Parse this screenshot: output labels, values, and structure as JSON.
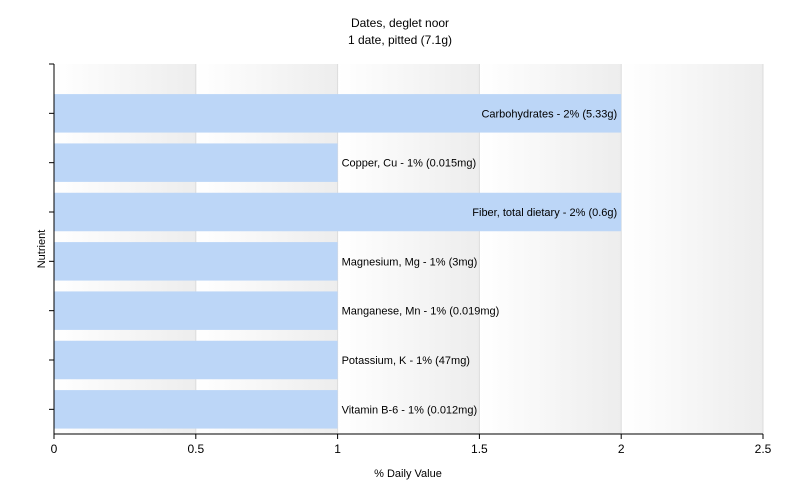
{
  "chart_data": {
    "type": "bar",
    "orientation": "horizontal",
    "title": "Dates, deglet noor",
    "subtitle": "1 date, pitted (7.1g)",
    "xlabel": "% Daily Value",
    "ylabel": "Nutrient",
    "xlim": [
      0,
      2.5
    ],
    "xticks": [
      "0",
      "0.5",
      "1",
      "1.5",
      "2",
      "2.5"
    ],
    "grid": true,
    "bar_color": "#bcd6f7",
    "categories": [
      "Carbohydrates",
      "Copper, Cu",
      "Fiber, total dietary",
      "Magnesium, Mg",
      "Manganese, Mn",
      "Potassium, K",
      "Vitamin B-6"
    ],
    "values": [
      2,
      1,
      2,
      1,
      1,
      1,
      1
    ],
    "labels": [
      "Carbohydrates - 2% (5.33g)",
      "Copper, Cu - 1% (0.015mg)",
      "Fiber, total dietary - 2% (0.6g)",
      "Magnesium, Mg - 1% (3mg)",
      "Manganese, Mn - 1% (0.019mg)",
      "Potassium, K - 1% (47mg)",
      "Vitamin B-6 - 1% (0.012mg)"
    ]
  }
}
